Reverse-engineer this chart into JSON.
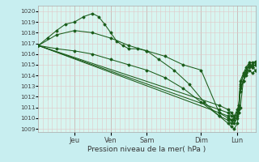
{
  "title": "Pression niveau de la mer( hPa )",
  "ylabel_values": [
    1009,
    1010,
    1011,
    1012,
    1013,
    1014,
    1015,
    1016,
    1017,
    1018,
    1019,
    1020
  ],
  "ylim": [
    1008.7,
    1020.5
  ],
  "background_color": "#c8eef0",
  "plot_bg_color": "#d8f5f0",
  "grid_color_major": "#c8a8a8",
  "grid_color_minor": "#e0c8c8",
  "line_color": "#1a5c1a",
  "figsize": [
    3.2,
    2.0
  ],
  "dpi": 100,
  "total_hours": 144,
  "day_tick_hours": [
    24,
    48,
    72,
    108,
    132
  ],
  "day_tick_labels": [
    "Jeu",
    "Ven",
    "Sam",
    "Dim",
    "Lun"
  ],
  "series": {
    "s1": {
      "x": [
        0,
        6,
        12,
        18,
        24,
        30,
        36,
        40,
        44,
        48,
        52,
        56,
        60,
        66,
        72,
        80,
        90,
        100,
        110,
        120,
        126,
        128,
        130,
        132,
        133,
        134,
        136,
        138,
        140,
        142,
        144
      ],
      "y": [
        1016.8,
        1017.5,
        1018.2,
        1018.8,
        1019.0,
        1019.5,
        1019.8,
        1019.5,
        1018.8,
        1018.0,
        1017.2,
        1016.8,
        1016.5,
        1016.5,
        1016.3,
        1015.5,
        1014.5,
        1013.2,
        1011.5,
        1010.2,
        1009.5,
        1009.2,
        1009.0,
        1009.5,
        1010.5,
        1011.0,
        1013.5,
        1014.5,
        1015.0,
        1014.8,
        1014.5
      ]
    },
    "s2": {
      "x": [
        0,
        12,
        24,
        36,
        48,
        60,
        72,
        84,
        96,
        108,
        120,
        126,
        128,
        130,
        132,
        133,
        134,
        136,
        138,
        140,
        142,
        144
      ],
      "y": [
        1016.8,
        1017.8,
        1018.2,
        1018.0,
        1017.5,
        1016.8,
        1016.3,
        1015.8,
        1015.0,
        1014.5,
        1010.5,
        1010.0,
        1009.8,
        1010.0,
        1010.5,
        1011.2,
        1013.0,
        1014.0,
        1014.5,
        1015.0,
        1014.8,
        1015.0
      ]
    },
    "s3": {
      "x": [
        0,
        12,
        24,
        36,
        48,
        60,
        72,
        84,
        96,
        108,
        120,
        126,
        128,
        130,
        132,
        133,
        134,
        136,
        138,
        140,
        142,
        144
      ],
      "y": [
        1016.8,
        1016.5,
        1016.3,
        1016.0,
        1015.5,
        1015.0,
        1014.5,
        1013.8,
        1012.8,
        1011.5,
        1010.2,
        1009.8,
        1009.5,
        1009.8,
        1010.2,
        1010.8,
        1012.5,
        1013.5,
        1014.0,
        1014.5,
        1014.2,
        1014.5
      ]
    },
    "s4_straight": {
      "x": [
        0,
        120,
        126,
        128,
        130,
        132,
        133,
        134,
        136,
        138,
        140,
        142,
        144
      ],
      "y": [
        1016.8,
        1010.8,
        1010.5,
        1010.2,
        1010.0,
        1010.5,
        1011.0,
        1013.2,
        1014.0,
        1014.5,
        1015.0,
        1015.0,
        1015.2
      ]
    },
    "s5_straight": {
      "x": [
        0,
        120,
        126,
        128,
        130,
        132,
        133,
        134,
        136,
        138,
        140,
        142,
        144
      ],
      "y": [
        1016.8,
        1010.5,
        1010.2,
        1009.8,
        1009.5,
        1010.0,
        1010.5,
        1012.8,
        1013.5,
        1014.2,
        1014.8,
        1014.8,
        1015.0
      ]
    },
    "s6_straight": {
      "x": [
        0,
        120,
        126,
        128,
        130,
        132,
        133,
        134,
        136,
        138,
        140,
        142,
        144
      ],
      "y": [
        1016.8,
        1011.2,
        1010.8,
        1010.5,
        1010.2,
        1010.8,
        1011.2,
        1013.5,
        1014.2,
        1014.8,
        1015.2,
        1015.2,
        1015.3
      ]
    }
  }
}
